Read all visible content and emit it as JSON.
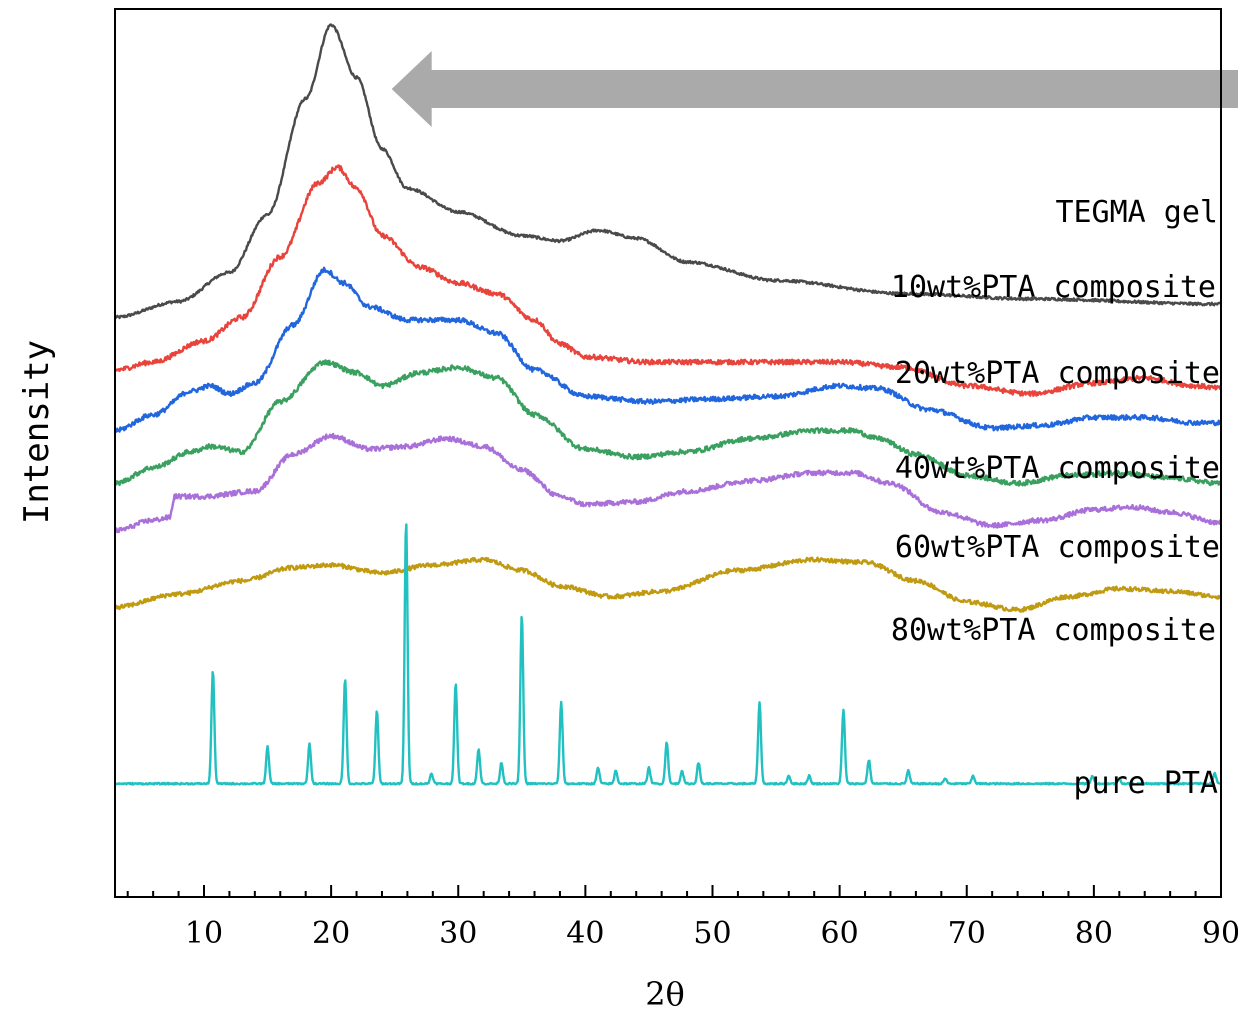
{
  "chart_data": {
    "type": "line",
    "title": "",
    "xlabel": "2θ",
    "ylabel": "Intensity",
    "xlim": [
      3,
      90
    ],
    "xticks": [
      10,
      20,
      30,
      40,
      50,
      60,
      70,
      80,
      90
    ],
    "x_minor_step": 2,
    "yaxis_ticks_shown": false,
    "grid": false,
    "annotations": [
      {
        "type": "arrow",
        "direction": "left",
        "color": "#aaaaaa",
        "from_x": 90,
        "to_x": 25
      }
    ],
    "series": [
      {
        "name": "TEGMA gel",
        "color": "#4a4a4a",
        "kind": "amorphous",
        "x": [
          3,
          8,
          12,
          15,
          18,
          20,
          22,
          24,
          26,
          30,
          35,
          38,
          41,
          44,
          48,
          55,
          65,
          75,
          90
        ],
        "y": [
          0.75,
          0.81,
          0.92,
          1.14,
          1.58,
          1.86,
          1.66,
          1.39,
          1.24,
          1.15,
          1.06,
          1.04,
          1.08,
          1.05,
          0.96,
          0.89,
          0.84,
          0.82,
          0.8
        ],
        "noise": 0.005
      },
      {
        "name": "10wt%PTA composite",
        "color": "#e8443c",
        "kind": "amorphous",
        "x": [
          3,
          6,
          10,
          13,
          16,
          19,
          20.5,
          22,
          24,
          27,
          30,
          33,
          36,
          38,
          40,
          45,
          55,
          60,
          65,
          70,
          75,
          80,
          84,
          88,
          90
        ],
        "y": [
          0.55,
          0.58,
          0.66,
          0.75,
          0.98,
          1.26,
          1.32,
          1.24,
          1.06,
          0.94,
          0.88,
          0.84,
          0.74,
          0.65,
          0.6,
          0.58,
          0.58,
          0.58,
          0.56,
          0.49,
          0.46,
          0.5,
          0.52,
          0.49,
          0.48
        ],
        "noise": 0.009
      },
      {
        "name": "20wt%PTA composite",
        "color": "#2266dd",
        "kind": "amorphous",
        "x": [
          3,
          6,
          9,
          10.5,
          12,
          14,
          17,
          19.5,
          21,
          23,
          26,
          30,
          33,
          36,
          40,
          45,
          50,
          55,
          60,
          63,
          67,
          72,
          76,
          80,
          84,
          88,
          90
        ],
        "y": [
          0.32,
          0.38,
          0.47,
          0.49,
          0.46,
          0.5,
          0.72,
          0.93,
          0.88,
          0.79,
          0.74,
          0.74,
          0.69,
          0.55,
          0.45,
          0.43,
          0.44,
          0.45,
          0.49,
          0.48,
          0.4,
          0.33,
          0.34,
          0.37,
          0.37,
          0.35,
          0.35
        ],
        "noise": 0.009
      },
      {
        "name": "40wt%PTA composite",
        "color": "#3aa060",
        "kind": "amorphous",
        "x": [
          3,
          6,
          9,
          10.5,
          13,
          16,
          19.5,
          22,
          24,
          27,
          30,
          33,
          36,
          40,
          44,
          48,
          53,
          58,
          61,
          63,
          66,
          70,
          74,
          78,
          82,
          86,
          90
        ],
        "y": [
          0.12,
          0.18,
          0.24,
          0.26,
          0.24,
          0.43,
          0.58,
          0.54,
          0.49,
          0.54,
          0.56,
          0.52,
          0.38,
          0.25,
          0.22,
          0.24,
          0.29,
          0.32,
          0.32,
          0.29,
          0.23,
          0.15,
          0.12,
          0.15,
          0.16,
          0.14,
          0.12
        ],
        "noise": 0.009
      },
      {
        "name": "60wt%PTA composite",
        "color": "#a870d8",
        "kind": "amorphous",
        "x": [
          3,
          6,
          7.3,
          7.7,
          10,
          14,
          17,
          20,
          23,
          26,
          29,
          32,
          35,
          38,
          40,
          44,
          48,
          53,
          58,
          61,
          64,
          68,
          72,
          76,
          80,
          83,
          86,
          90
        ],
        "y": [
          -0.06,
          -0.02,
          -0.01,
          0.07,
          0.07,
          0.09,
          0.23,
          0.3,
          0.25,
          0.26,
          0.29,
          0.26,
          0.17,
          0.07,
          0.04,
          0.05,
          0.09,
          0.13,
          0.16,
          0.16,
          0.12,
          0.01,
          -0.04,
          -0.02,
          0.02,
          0.03,
          0.01,
          -0.03
        ],
        "noise": 0.009
      },
      {
        "name": "80wt%PTA composite",
        "color": "#c09a10",
        "kind": "amorphous",
        "x": [
          3,
          8,
          13,
          17,
          20,
          24,
          28,
          32,
          35,
          38,
          42,
          46,
          52,
          58,
          62,
          66,
          70,
          74,
          78,
          82,
          86,
          90
        ],
        "y": [
          -0.35,
          -0.3,
          -0.25,
          -0.2,
          -0.19,
          -0.22,
          -0.19,
          -0.17,
          -0.21,
          -0.27,
          -0.31,
          -0.29,
          -0.21,
          -0.17,
          -0.18,
          -0.25,
          -0.33,
          -0.36,
          -0.31,
          -0.28,
          -0.29,
          -0.31
        ],
        "noise": 0.008
      },
      {
        "name": "pure PTA",
        "color": "#22c0c0",
        "kind": "peaks",
        "baseline": -1.02,
        "peaks": [
          {
            "x": 10.7,
            "h": 0.43
          },
          {
            "x": 15.0,
            "h": 0.14
          },
          {
            "x": 18.3,
            "h": 0.15
          },
          {
            "x": 21.1,
            "h": 0.4
          },
          {
            "x": 23.6,
            "h": 0.28
          },
          {
            "x": 25.9,
            "h": 1.0
          },
          {
            "x": 27.9,
            "h": 0.04
          },
          {
            "x": 29.8,
            "h": 0.38
          },
          {
            "x": 31.6,
            "h": 0.13
          },
          {
            "x": 33.4,
            "h": 0.08
          },
          {
            "x": 35.0,
            "h": 0.64
          },
          {
            "x": 38.1,
            "h": 0.31
          },
          {
            "x": 41.0,
            "h": 0.06
          },
          {
            "x": 42.4,
            "h": 0.05
          },
          {
            "x": 45.0,
            "h": 0.06
          },
          {
            "x": 46.4,
            "h": 0.16
          },
          {
            "x": 47.6,
            "h": 0.05
          },
          {
            "x": 48.9,
            "h": 0.08
          },
          {
            "x": 53.7,
            "h": 0.31
          },
          {
            "x": 56.0,
            "h": 0.03
          },
          {
            "x": 57.6,
            "h": 0.03
          },
          {
            "x": 60.3,
            "h": 0.28
          },
          {
            "x": 62.3,
            "h": 0.09
          },
          {
            "x": 65.4,
            "h": 0.05
          },
          {
            "x": 68.3,
            "h": 0.02
          },
          {
            "x": 70.5,
            "h": 0.03
          },
          {
            "x": 79.9,
            "h": 0.03
          },
          {
            "x": 82.0,
            "h": 0.02
          },
          {
            "x": 89.5,
            "h": 0.04
          }
        ]
      }
    ]
  }
}
